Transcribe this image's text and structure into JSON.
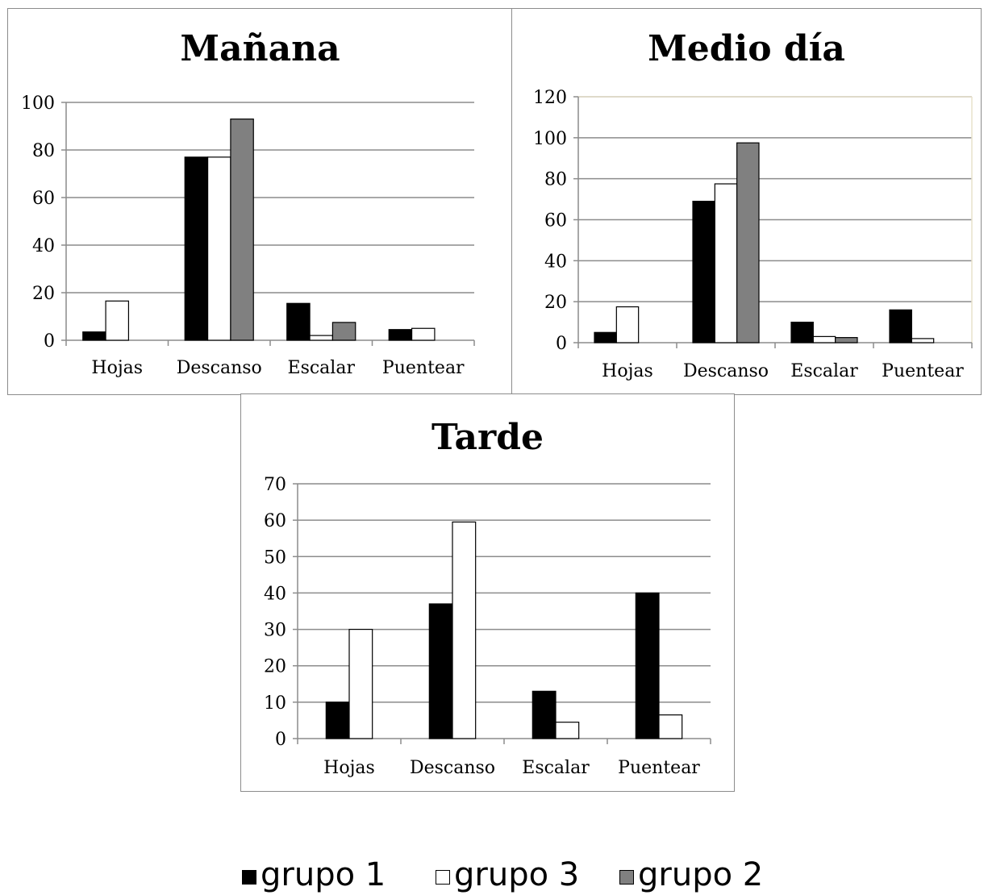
{
  "colors": {
    "grupo_1": "#000000",
    "grupo_3": "#ffffff",
    "grupo_2": "#808080"
  },
  "legend": [
    {
      "name": "grupo 1",
      "color": "#000000"
    },
    {
      "name": "grupo 3",
      "color": "#ffffff"
    },
    {
      "name": "grupo 2",
      "color": "#808080"
    }
  ],
  "chart_data": [
    {
      "type": "bar",
      "title": "Mañana",
      "categories": [
        "Hojas",
        "Descanso",
        "Escalar",
        "Puentear"
      ],
      "series": [
        {
          "name": "grupo 1",
          "values": [
            3.5,
            77,
            15.5,
            4.5
          ]
        },
        {
          "name": "grupo 3",
          "values": [
            16.5,
            77,
            2,
            5
          ]
        },
        {
          "name": "grupo 2",
          "values": [
            0,
            93,
            7.5,
            0
          ]
        }
      ],
      "ylim": [
        0,
        100
      ],
      "yticks": [
        0,
        20,
        40,
        60,
        80,
        100
      ],
      "grid": true
    },
    {
      "type": "bar",
      "title": "Medio día",
      "categories": [
        "Hojas",
        "Descanso",
        "Escalar",
        "Puentear"
      ],
      "series": [
        {
          "name": "grupo 1",
          "values": [
            5,
            69,
            10,
            16
          ]
        },
        {
          "name": "grupo 3",
          "values": [
            17.5,
            77.5,
            3,
            2
          ]
        },
        {
          "name": "grupo 2",
          "values": [
            0,
            97.5,
            2.5,
            0
          ]
        }
      ],
      "ylim": [
        0,
        120
      ],
      "yticks": [
        0,
        20,
        40,
        60,
        80,
        100,
        120
      ],
      "grid": true
    },
    {
      "type": "bar",
      "title": "Tarde",
      "categories": [
        "Hojas",
        "Descanso",
        "Escalar",
        "Puentear"
      ],
      "series": [
        {
          "name": "grupo 1",
          "values": [
            10,
            37,
            13,
            40
          ]
        },
        {
          "name": "grupo 3",
          "values": [
            30,
            59.5,
            4.5,
            6.5
          ]
        }
      ],
      "ylim": [
        0,
        70
      ],
      "yticks": [
        0,
        10,
        20,
        30,
        40,
        50,
        60,
        70
      ],
      "grid": true
    }
  ]
}
